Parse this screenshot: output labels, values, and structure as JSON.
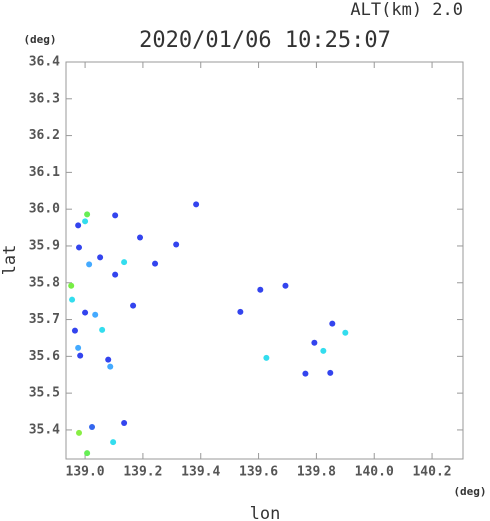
{
  "chart_data": {
    "type": "scatter",
    "title": "2020/01/06 10:25:07",
    "subtitle": "ALT(km)  2.0",
    "x_label": "lon",
    "y_label": "lat",
    "x_unit": "(deg)",
    "y_unit": "(deg)",
    "xlim": [
      138.934,
      140.307
    ],
    "ylim": [
      35.321,
      36.4
    ],
    "xticks": [
      {
        "value": 139.0,
        "label": "139.0"
      },
      139.2,
      139.4,
      139.6,
      139.8,
      {
        "value": 140.0,
        "label": "140.0"
      },
      140.2
    ],
    "yticks": [
      35.4,
      35.5,
      35.6,
      35.7,
      35.8,
      35.9,
      {
        "value": 36.0,
        "label": "36.0"
      },
      36.1,
      36.2,
      36.3,
      36.4
    ],
    "x": [
      139.007,
      139.0,
      138.976,
      138.979,
      138.952,
      138.955,
      139.0,
      138.965,
      138.976,
      138.983,
      139.014,
      139.052,
      139.08,
      139.087,
      139.104,
      139.104,
      139.135,
      139.166,
      139.19,
      139.242,
      139.315,
      139.384,
      139.606,
      139.627,
      139.693,
      139.793,
      139.824,
      139.855,
      139.9,
      139.848,
      139.762,
      138.979,
      139.024,
      139.135,
      139.097,
      139.007,
      139.537,
      139.035,
      139.059
    ],
    "y": [
      35.986,
      35.967,
      35.956,
      35.896,
      35.792,
      35.754,
      35.719,
      35.67,
      35.623,
      35.602,
      35.85,
      35.869,
      35.591,
      35.572,
      35.983,
      35.822,
      35.856,
      35.738,
      35.923,
      35.852,
      35.904,
      36.013,
      35.781,
      35.596,
      35.792,
      35.637,
      35.615,
      35.689,
      35.664,
      35.555,
      35.553,
      35.392,
      35.408,
      35.419,
      35.367,
      35.337,
      35.721,
      35.713,
      35.672
    ],
    "colors": [
      "#66ee55",
      "#33ddee",
      "#3344ee",
      "#3344ee",
      "#77ee44",
      "#33ddee",
      "#3344ee",
      "#3344ee",
      "#44aaff",
      "#3344ee",
      "#44aaff",
      "#3344ee",
      "#3344ee",
      "#44aaff",
      "#3344ee",
      "#3344ee",
      "#33ddee",
      "#3344ee",
      "#3344ee",
      "#3344ee",
      "#3344ee",
      "#3344ee",
      "#3344ee",
      "#33ddee",
      "#3344ee",
      "#3344ee",
      "#33ddee",
      "#3344ee",
      "#33ddee",
      "#3344ee",
      "#3344ee",
      "#88ee44",
      "#3366ee",
      "#3344ee",
      "#33ddee",
      "#66ee55",
      "#3344ee",
      "#44aaff",
      "#33ddee"
    ]
  }
}
